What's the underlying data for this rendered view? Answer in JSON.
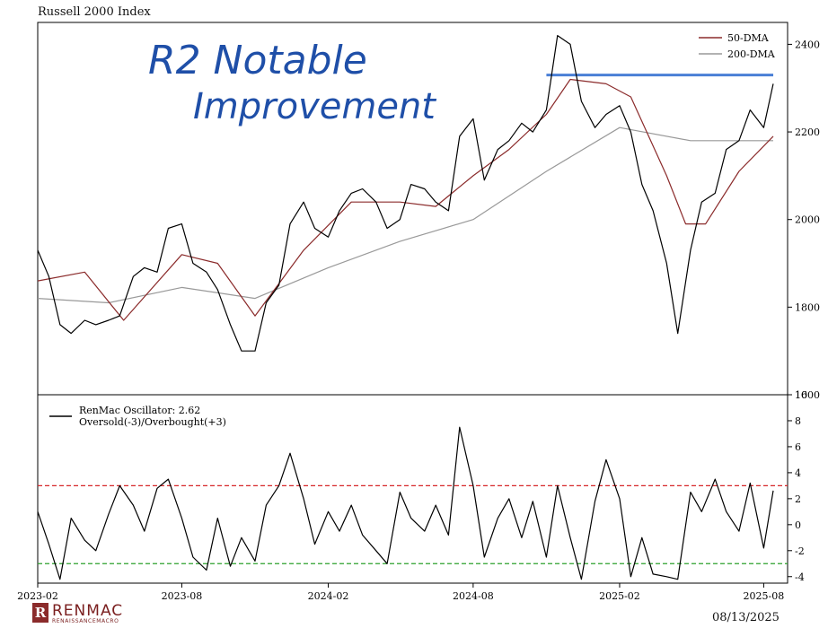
{
  "header": {
    "title": "Russell 2000 Index"
  },
  "footer": {
    "date": "08/13/2025",
    "logo_text": "RENMAC",
    "logo_letter": "R",
    "logo_subtext": "RENAISSANCEMACRO"
  },
  "annotation": {
    "line1": "R2 Notable",
    "line2": "Improvement",
    "color": "#1f4fa8"
  },
  "chart_data": [
    {
      "type": "line",
      "title": "Russell 2000 Index",
      "x_ticks": [
        "2023-02",
        "2023-08",
        "2024-02",
        "2024-08",
        "2025-02",
        "2025-08"
      ],
      "y_ticks": [
        1600,
        1800,
        2000,
        2200,
        2400
      ],
      "ylim": [
        1600,
        2450
      ],
      "y_axis_side": "right",
      "legend": {
        "position": "top-right",
        "entries": [
          "50-DMA",
          "200-DMA"
        ]
      },
      "resistance_line": {
        "from": "2024-11",
        "to": "2025-08-13",
        "value": 2330,
        "color": "#4a7fd6"
      },
      "series": [
        {
          "name": "Russell 2000 Index",
          "color": "#000000",
          "x": [
            "2023-02-01",
            "2023-02-15",
            "2023-03-01",
            "2023-03-15",
            "2023-04-01",
            "2023-04-15",
            "2023-05-01",
            "2023-05-15",
            "2023-06-01",
            "2023-06-15",
            "2023-07-01",
            "2023-07-15",
            "2023-08-01",
            "2023-08-15",
            "2023-09-01",
            "2023-09-15",
            "2023-10-01",
            "2023-10-15",
            "2023-11-01",
            "2023-11-15",
            "2023-12-01",
            "2023-12-15",
            "2024-01-01",
            "2024-01-15",
            "2024-02-01",
            "2024-02-15",
            "2024-03-01",
            "2024-03-15",
            "2024-04-01",
            "2024-04-15",
            "2024-05-01",
            "2024-05-15",
            "2024-06-01",
            "2024-06-15",
            "2024-07-01",
            "2024-07-15",
            "2024-08-01",
            "2024-08-15",
            "2024-09-01",
            "2024-09-15",
            "2024-10-01",
            "2024-10-15",
            "2024-11-01",
            "2024-11-15",
            "2024-12-01",
            "2024-12-15",
            "2025-01-01",
            "2025-01-15",
            "2025-02-01",
            "2025-02-15",
            "2025-03-01",
            "2025-03-15",
            "2025-04-01",
            "2025-04-15",
            "2025-05-01",
            "2025-05-15",
            "2025-06-01",
            "2025-06-15",
            "2025-07-01",
            "2025-07-15",
            "2025-08-01",
            "2025-08-13"
          ],
          "values": [
            1930,
            1870,
            1760,
            1740,
            1770,
            1760,
            1770,
            1780,
            1870,
            1890,
            1880,
            1980,
            1990,
            1900,
            1880,
            1840,
            1760,
            1700,
            1700,
            1810,
            1850,
            1990,
            2040,
            1980,
            1960,
            2020,
            2060,
            2070,
            2040,
            1980,
            2000,
            2080,
            2070,
            2040,
            2020,
            2190,
            2230,
            2090,
            2160,
            2180,
            2220,
            2200,
            2250,
            2420,
            2400,
            2270,
            2210,
            2240,
            2260,
            2200,
            2080,
            2020,
            1900,
            1740,
            1930,
            2040,
            2060,
            2160,
            2180,
            2250,
            2210,
            2310
          ]
        },
        {
          "name": "50-DMA",
          "color": "#8b2b2b",
          "x": [
            "2023-02-01",
            "2023-04-01",
            "2023-05-20",
            "2023-08-01",
            "2023-09-15",
            "2023-11-01",
            "2024-01-01",
            "2024-03-01",
            "2024-05-01",
            "2024-06-15",
            "2024-08-01",
            "2024-09-15",
            "2024-11-01",
            "2024-12-01",
            "2025-01-15",
            "2025-02-15",
            "2025-04-01",
            "2025-04-25",
            "2025-05-20",
            "2025-07-01",
            "2025-08-13"
          ],
          "values": [
            1860,
            1880,
            1770,
            1920,
            1900,
            1780,
            1930,
            2040,
            2040,
            2030,
            2100,
            2160,
            2240,
            2320,
            2310,
            2280,
            2100,
            1990,
            1990,
            2110,
            2190
          ]
        },
        {
          "name": "200-DMA",
          "color": "#999999",
          "x": [
            "2023-02-01",
            "2023-05-01",
            "2023-08-01",
            "2023-11-01",
            "2024-02-01",
            "2024-05-01",
            "2024-08-01",
            "2024-11-01",
            "2025-02-01",
            "2025-05-01",
            "2025-08-13"
          ],
          "values": [
            1820,
            1810,
            1845,
            1820,
            1890,
            1950,
            2000,
            2110,
            2210,
            2180,
            2180
          ]
        }
      ]
    },
    {
      "type": "line",
      "title": "",
      "x_ticks": [
        "2023-02",
        "2023-08",
        "2024-02",
        "2024-08",
        "2025-02",
        "2025-08"
      ],
      "y_ticks": [
        -4,
        -2,
        0,
        2,
        4,
        6,
        8,
        10
      ],
      "ylim": [
        -4.5,
        10
      ],
      "y_axis_side": "right",
      "legend": {
        "position": "top-left",
        "entries": [
          "RenMac Oscillator: 2.62",
          "Oversold(-3)/Overbought(+3)"
        ]
      },
      "reference_lines": [
        {
          "value": 3,
          "color": "#d62728",
          "style": "dashed"
        },
        {
          "value": -3,
          "color": "#2ca02c",
          "style": "dashed"
        }
      ],
      "series": [
        {
          "name": "RenMac Oscillator: 2.62",
          "color": "#000000",
          "x": [
            "2023-02-01",
            "2023-02-15",
            "2023-03-01",
            "2023-03-15",
            "2023-04-01",
            "2023-04-15",
            "2023-05-01",
            "2023-05-15",
            "2023-06-01",
            "2023-06-15",
            "2023-07-01",
            "2023-07-15",
            "2023-08-01",
            "2023-08-15",
            "2023-09-01",
            "2023-09-15",
            "2023-10-01",
            "2023-10-15",
            "2023-11-01",
            "2023-11-15",
            "2023-12-01",
            "2023-12-15",
            "2024-01-01",
            "2024-01-15",
            "2024-02-01",
            "2024-02-15",
            "2024-03-01",
            "2024-03-15",
            "2024-04-01",
            "2024-04-15",
            "2024-05-01",
            "2024-05-15",
            "2024-06-01",
            "2024-06-15",
            "2024-07-01",
            "2024-07-15",
            "2024-08-01",
            "2024-08-15",
            "2024-09-01",
            "2024-09-15",
            "2024-10-01",
            "2024-10-15",
            "2024-11-01",
            "2024-11-15",
            "2024-12-01",
            "2024-12-15",
            "2025-01-01",
            "2025-01-15",
            "2025-02-01",
            "2025-02-15",
            "2025-03-01",
            "2025-03-15",
            "2025-04-01",
            "2025-04-15",
            "2025-05-01",
            "2025-05-15",
            "2025-06-01",
            "2025-06-15",
            "2025-07-01",
            "2025-07-15",
            "2025-08-01",
            "2025-08-13"
          ],
          "values": [
            1.0,
            -1.5,
            -4.2,
            0.5,
            -1.2,
            -2.0,
            0.8,
            3.0,
            1.5,
            -0.5,
            2.8,
            3.5,
            0.5,
            -2.5,
            -3.5,
            0.5,
            -3.2,
            -1.0,
            -2.8,
            1.5,
            3.0,
            5.5,
            2.0,
            -1.5,
            1.0,
            -0.5,
            1.5,
            -0.8,
            -2.0,
            -3.0,
            2.5,
            0.5,
            -0.5,
            1.5,
            -0.8,
            7.5,
            3.0,
            -2.5,
            0.5,
            2.0,
            -1.0,
            1.8,
            -2.5,
            3.0,
            -1.0,
            -4.2,
            1.8,
            5.0,
            2.0,
            -4.0,
            -1.0,
            -3.8,
            -4.0,
            -4.2,
            2.5,
            1.0,
            3.5,
            1.0,
            -0.5,
            3.2,
            -1.8,
            2.62
          ]
        }
      ]
    }
  ]
}
